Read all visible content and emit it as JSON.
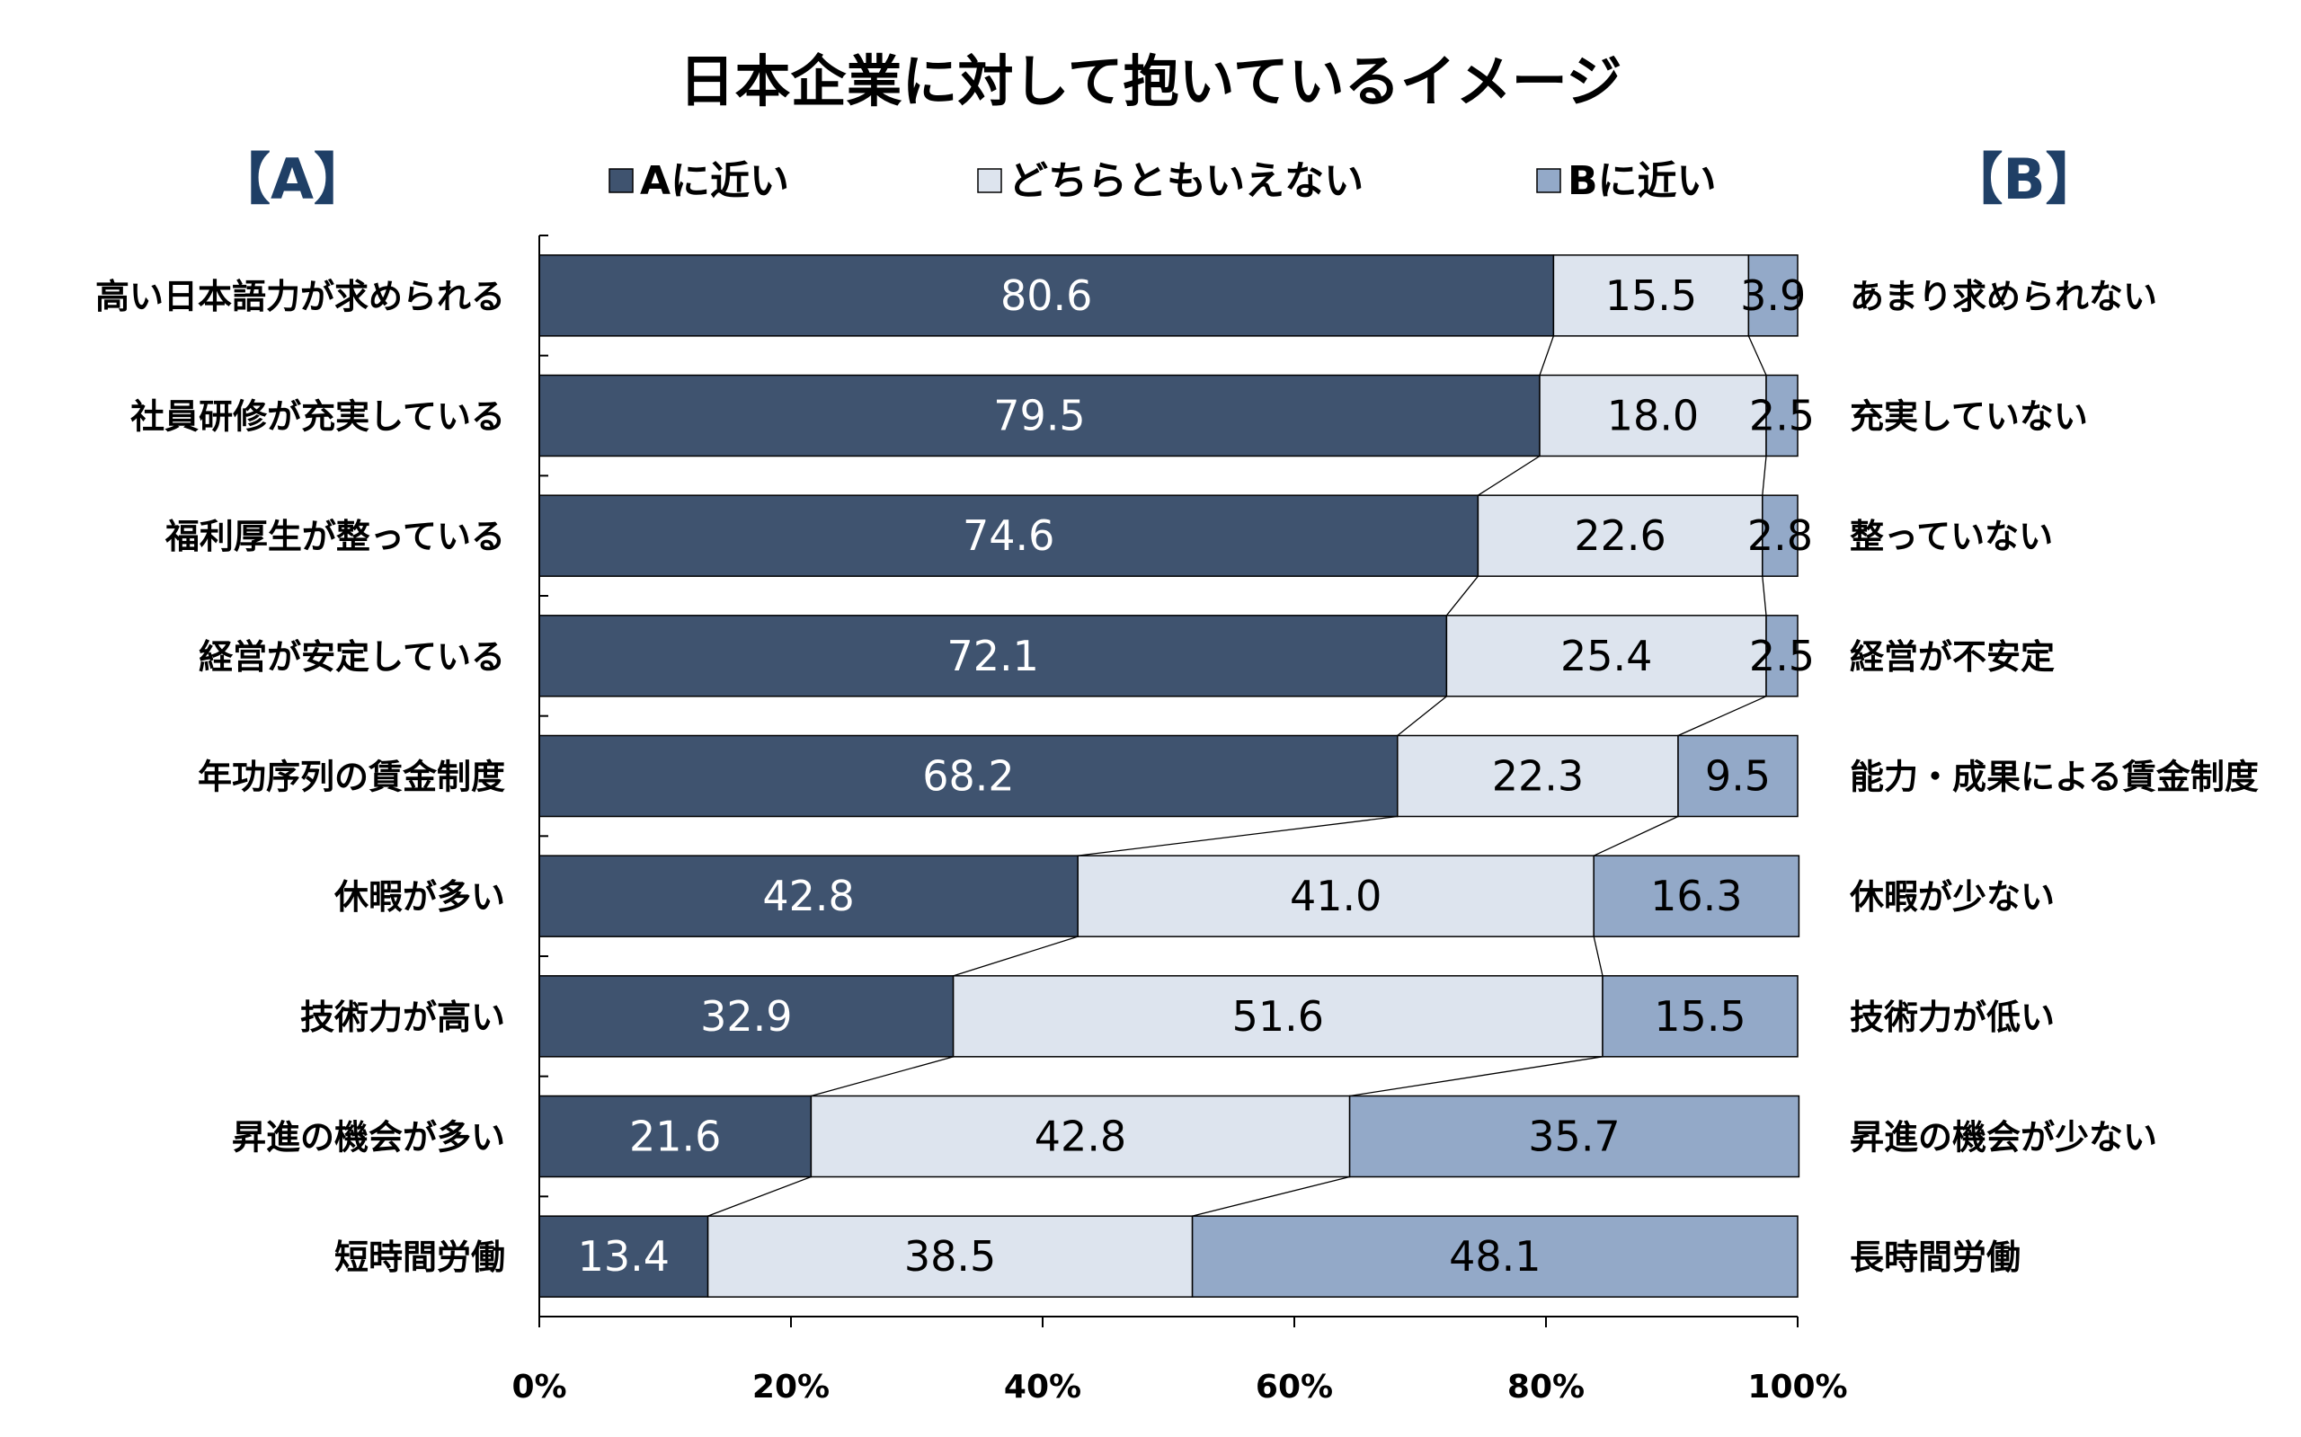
{
  "chart_data": {
    "type": "bar",
    "orientation": "horizontal-stacked-100",
    "title": "日本企業に対して抱いているイメージ",
    "left_header": "【A】",
    "right_header": "【B】",
    "series": [
      {
        "name": "Aに近い",
        "color": "#3f536f",
        "values": [
          80.6,
          79.5,
          74.6,
          72.1,
          68.2,
          42.8,
          32.9,
          21.6,
          13.4
        ]
      },
      {
        "name": "どちらともいえない",
        "color": "#dde4ee",
        "values": [
          15.5,
          18.0,
          22.6,
          25.4,
          22.3,
          41.0,
          51.6,
          42.8,
          38.5
        ]
      },
      {
        "name": "Bに近い",
        "color": "#93a9c8",
        "values": [
          3.9,
          2.5,
          2.8,
          2.5,
          9.5,
          16.3,
          15.5,
          35.7,
          48.1
        ]
      }
    ],
    "value_labels": [
      [
        "80.6",
        "79.5",
        "74.6",
        "72.1",
        "68.2",
        "42.8",
        "32.9",
        "21.6",
        "13.4"
      ],
      [
        "15.5",
        "18.0",
        "22.6",
        "25.4",
        "22.3",
        "41.0",
        "51.6",
        "42.8",
        "38.5"
      ],
      [
        "3.9",
        "2.5",
        "2.8",
        "2.5",
        "9.5",
        "16.3",
        "15.5",
        "35.7",
        "48.1"
      ]
    ],
    "categories_left": [
      "高い日本語力が求められる",
      "社員研修が充実している",
      "福利厚生が整っている",
      "経営が安定している",
      "年功序列の賃金制度",
      "休暇が多い",
      "技術力が高い",
      "昇進の機会が多い",
      "短時間労働"
    ],
    "categories_right": [
      "あまり求められない",
      "充実していない",
      "整っていない",
      "経営が不安定",
      "能力・成果による賃金制度",
      "休暇が少ない",
      "技術力が低い",
      "昇進の機会が少ない",
      "長時間労働"
    ],
    "xticks": [
      "0%",
      "20%",
      "40%",
      "60%",
      "80%",
      "100%"
    ],
    "xlim": [
      0,
      100
    ],
    "legend_position": "top"
  }
}
